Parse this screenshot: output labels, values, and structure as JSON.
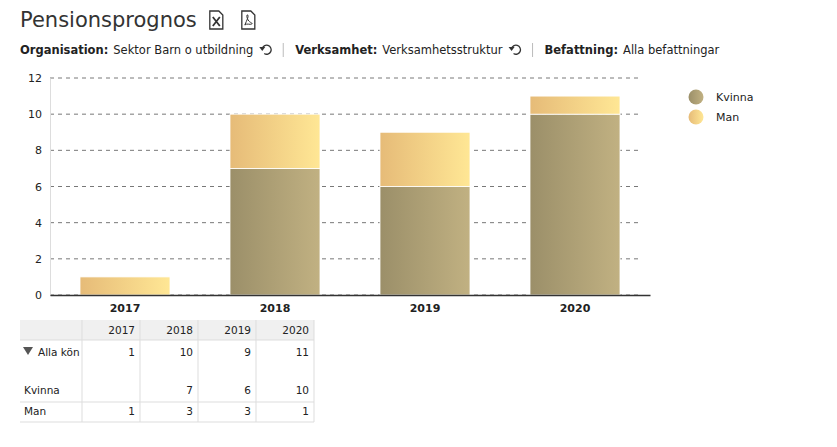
{
  "header": {
    "title": "Pensionsprognos"
  },
  "filters": [
    {
      "label": "Organisation:",
      "value": "Sektor Barn o utbildning"
    },
    {
      "label": "Verksamhet:",
      "value": "Verksamhetsstruktur"
    },
    {
      "label": "Befattning:",
      "value": "Alla befattningar"
    }
  ],
  "chart_data": {
    "type": "bar",
    "stacked": true,
    "categories": [
      "2017",
      "2018",
      "2019",
      "2020"
    ],
    "series": [
      {
        "name": "Kvinna",
        "color": "#a4976f",
        "values": [
          null,
          7,
          6,
          10
        ]
      },
      {
        "name": "Man",
        "color": "#f3c57f",
        "values": [
          1,
          3,
          3,
          1
        ]
      }
    ],
    "ylim": [
      0,
      12
    ],
    "yticks": [
      0,
      2,
      4,
      6,
      8,
      10,
      12
    ],
    "grid": true,
    "legend": "right"
  },
  "table": {
    "total": {
      "label": "Alla kön",
      "values": [
        1,
        10,
        9,
        11
      ]
    }
  }
}
